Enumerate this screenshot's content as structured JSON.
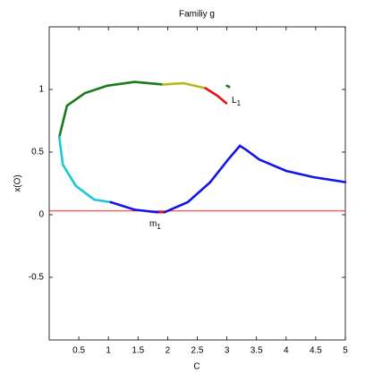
{
  "chart_data": {
    "type": "line",
    "title": "Familiy g",
    "x_label": "C",
    "y_label": "x(O)",
    "xlim": [
      0,
      5
    ],
    "ylim": [
      -1,
      1.5
    ],
    "xticks": [
      0.5,
      1,
      1.5,
      2,
      2.5,
      3,
      3.5,
      4,
      4.5,
      5
    ],
    "yticks": [
      -0.5,
      0,
      0.5,
      1
    ],
    "hline": {
      "value": 0.03,
      "color": "#ff0000"
    },
    "series": [
      {
        "color": "#1a7a1a",
        "x": [
          0.17,
          0.3,
          0.6,
          0.98,
          1.44,
          1.92
        ],
        "values": [
          0.62,
          0.87,
          0.97,
          1.03,
          1.06,
          1.04
        ]
      },
      {
        "color": "#b5b81c",
        "x": [
          1.92,
          2.27,
          2.64
        ],
        "values": [
          1.04,
          1.05,
          1.01
        ]
      },
      {
        "color": "#e81010",
        "x": [
          2.64,
          2.84,
          2.99
        ],
        "values": [
          1.01,
          0.95,
          0.89
        ]
      },
      {
        "color": "#1a7a1a",
        "x": [
          3.0,
          3.04
        ],
        "values": [
          1.03,
          1.02
        ]
      },
      {
        "color": "#1ec8d2",
        "x": [
          0.17,
          0.23,
          0.45,
          0.76,
          1.04
        ],
        "values": [
          0.62,
          0.4,
          0.23,
          0.12,
          0.1
        ]
      },
      {
        "color": "#1414e6",
        "x": [
          1.04,
          1.44,
          1.81,
          1.87
        ],
        "values": [
          0.1,
          0.04,
          0.02,
          0.02
        ]
      },
      {
        "color": "#e81010",
        "x": [
          1.87,
          1.95
        ],
        "values": [
          0.02,
          0.02
        ]
      },
      {
        "color": "#1414e6",
        "x": [
          1.95,
          2.34,
          2.72,
          3.02,
          3.22,
          3.32,
          3.55,
          4.0,
          4.46,
          5.0
        ],
        "values": [
          0.02,
          0.1,
          0.26,
          0.44,
          0.55,
          0.52,
          0.44,
          0.35,
          0.3,
          0.26
        ]
      }
    ],
    "annotations": [
      {
        "text": "L",
        "sub": "1"
      },
      {
        "text": "m",
        "sub": "1"
      }
    ]
  }
}
